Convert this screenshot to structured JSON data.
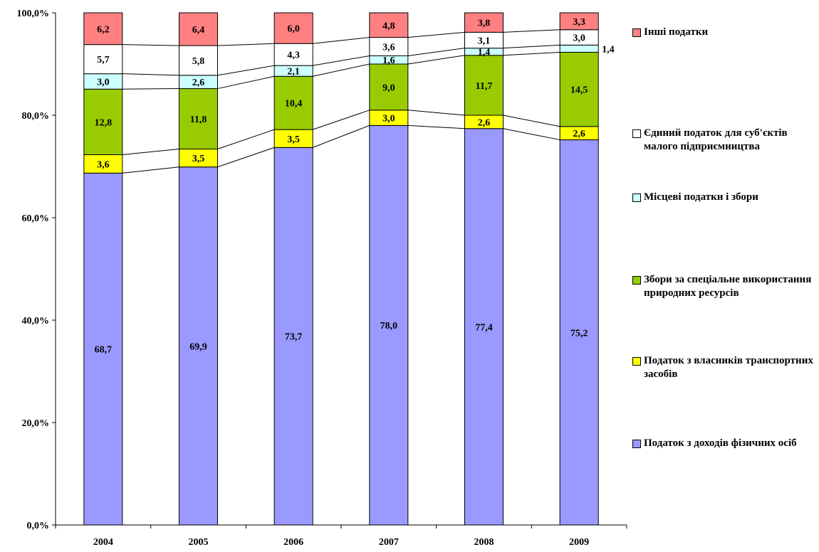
{
  "chart_data": {
    "type": "bar",
    "stacked": true,
    "categories": [
      "2004",
      "2005",
      "2006",
      "2007",
      "2008",
      "2009"
    ],
    "series": [
      {
        "name": "Податок з доходів фізичних осіб",
        "color": "#9999ff",
        "values": [
          68.7,
          69.9,
          73.7,
          78.0,
          77.4,
          75.2
        ],
        "labels": [
          "68,7",
          "69,9",
          "73,7",
          "78,0",
          "77,4",
          "75,2"
        ]
      },
      {
        "name": "Податок з власників транспортних засобів",
        "color": "#ffff00",
        "values": [
          3.6,
          3.5,
          3.5,
          3.0,
          2.6,
          2.6
        ],
        "labels": [
          "3,6",
          "3,5",
          "3,5",
          "3,0",
          "2,6",
          "2,6"
        ]
      },
      {
        "name": "Збори за спеціальне використання природних ресурсів",
        "color": "#99cc00",
        "values": [
          12.8,
          11.8,
          10.4,
          9.0,
          11.7,
          14.5
        ],
        "labels": [
          "12,8",
          "11,8",
          "10,4",
          "9,0",
          "11,7",
          "14,5"
        ]
      },
      {
        "name": "Місцеві податки і збори",
        "color": "#ccffff",
        "values": [
          3.0,
          2.6,
          2.1,
          1.6,
          1.4,
          1.4
        ],
        "labels": [
          "3,0",
          "2,6",
          "2,1",
          "1,6",
          "1,4",
          "1,4"
        ]
      },
      {
        "name": "Єдиний податок для суб'єктів малого підприємництва",
        "color": "#ffffff",
        "values": [
          5.7,
          5.8,
          4.3,
          3.6,
          3.1,
          3.0
        ],
        "labels": [
          "5,7",
          "5,8",
          "4,3",
          "3,6",
          "3,1",
          "3,0"
        ]
      },
      {
        "name": "Інші податки",
        "color": "#ff8080",
        "values": [
          6.2,
          6.4,
          6.0,
          4.8,
          3.8,
          3.3
        ],
        "labels": [
          "6,2",
          "6,4",
          "6,0",
          "4,8",
          "3,8",
          "3,3"
        ]
      }
    ],
    "ylim": [
      0,
      100
    ],
    "yticks": [
      0,
      20,
      40,
      60,
      80,
      100
    ],
    "ytick_labels": [
      "0,0%",
      "20,0%",
      "40,0%",
      "60,0%",
      "80,0%",
      "100,0%"
    ],
    "series_lines": true,
    "legend_position": "right",
    "legend_order": [
      5,
      4,
      3,
      2,
      1,
      0
    ],
    "grid": false
  }
}
